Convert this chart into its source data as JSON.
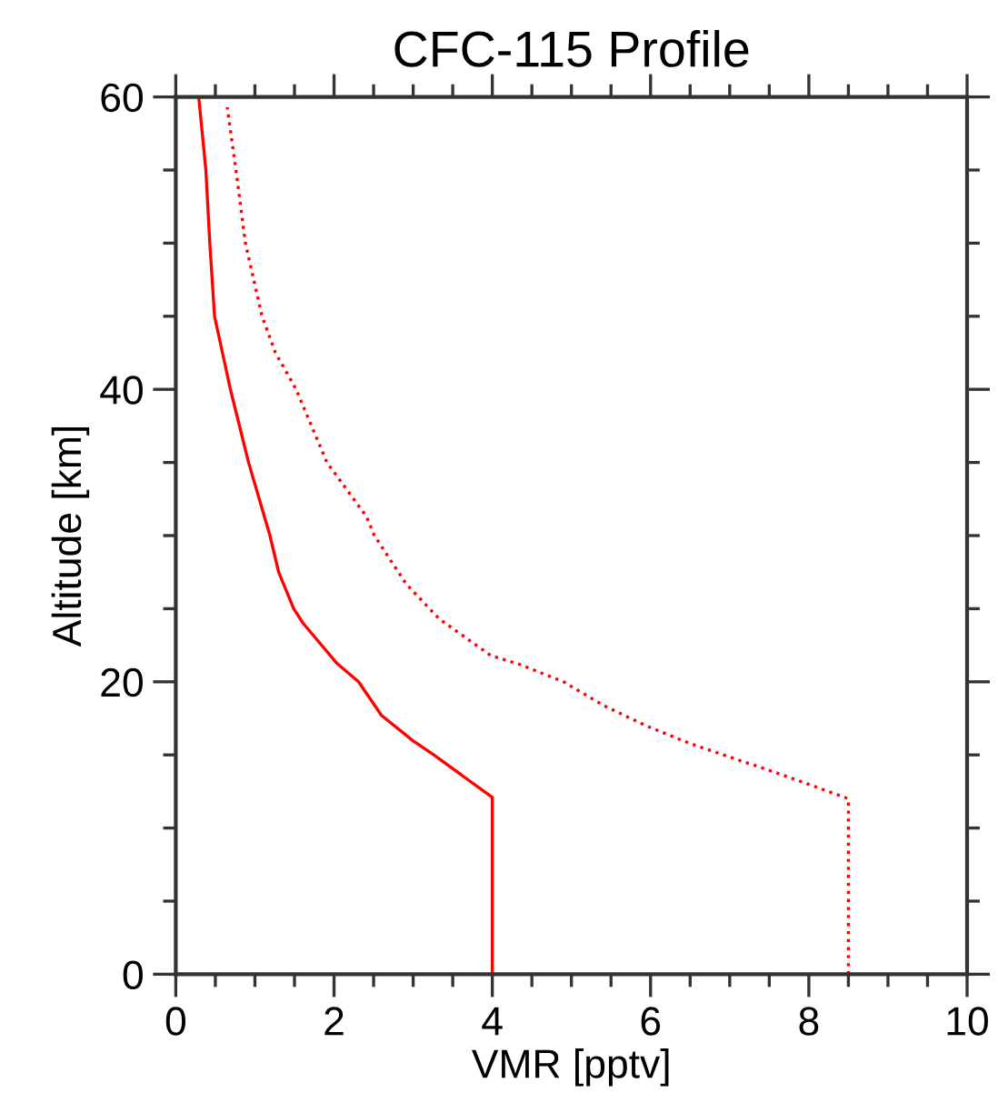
{
  "chart_data": {
    "type": "line",
    "title": "CFC-115 Profile",
    "xlabel": "VMR [pptv]",
    "ylabel": "Altitude [km]",
    "xlim": [
      0,
      10
    ],
    "xticks": [
      0,
      2,
      4,
      6,
      8,
      10
    ],
    "ylim": [
      0,
      60
    ],
    "yticks": [
      0,
      20,
      40,
      60
    ],
    "grid": false,
    "legend": false,
    "marker": "none",
    "series": [
      {
        "color": "#ff0000",
        "line_style": "solid",
        "x": [
          4.0,
          4.0,
          3.26,
          2.99,
          2.6,
          2.31,
          2.03,
          1.61,
          1.49,
          1.3,
          1.19,
          0.92,
          0.69,
          0.59,
          0.49,
          0.43,
          0.38,
          0.29
        ],
        "values": [
          0,
          12.1,
          15,
          16,
          17.7,
          20,
          21.3,
          24,
          25,
          27.5,
          30,
          35,
          40,
          42.5,
          45,
          50,
          55,
          60
        ]
      },
      {
        "color": "#ff0000",
        "line_style": "dotted",
        "x": [
          8.5,
          8.5,
          8.35,
          7.58,
          7.03,
          6.49,
          5.94,
          5.4,
          4.9,
          4.34,
          3.98,
          3.33,
          2.91,
          2.51,
          2.41,
          1.91,
          1.52,
          1.26,
          1.09,
          0.88,
          0.76,
          0.65
        ],
        "values": [
          0,
          12,
          12.3,
          13.8,
          14.8,
          15.8,
          17,
          18.4,
          20,
          21.2,
          21.8,
          24.3,
          26.7,
          30,
          31.3,
          35,
          40,
          42.5,
          45,
          50,
          55,
          59.3
        ]
      }
    ]
  }
}
